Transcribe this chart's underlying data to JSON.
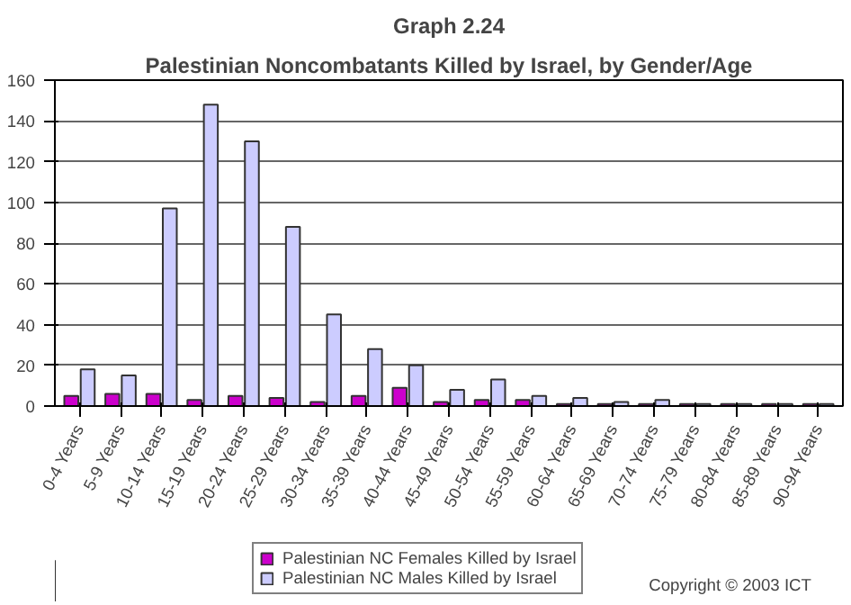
{
  "chart_data": {
    "type": "bar",
    "title": "Graph 2.24",
    "subtitle": "Palestinian Noncombatants Killed by Israel, by Gender/Age",
    "categories": [
      "0-4 Years",
      "5-9 Years",
      "10-14 Years",
      "15-19 Years",
      "20-24 Years",
      "25-29 Years",
      "30-34 Years",
      "35-39 Years",
      "40-44 Years",
      "45-49 Years",
      "50-54 Years",
      "55-59 Years",
      "60-64 Years",
      "65-69 Years",
      "70-74 Years",
      "75-79 Years",
      "80-84 Years",
      "85-89 Years",
      "90-94 Years"
    ],
    "series": [
      {
        "name": "Palestinian NC Females Killed by Israel",
        "color": "#cc00cc",
        "values": [
          5,
          6,
          6,
          3,
          5,
          4,
          2,
          5,
          9,
          2,
          3,
          3,
          1,
          1,
          1,
          1,
          1,
          1,
          1
        ]
      },
      {
        "name": "Palestinian NC Males Killed by Israel",
        "color": "#ccccff",
        "values": [
          18,
          15,
          97,
          148,
          130,
          88,
          45,
          28,
          20,
          8,
          13,
          5,
          4,
          2,
          3,
          1,
          1,
          1,
          1
        ]
      }
    ],
    "ylim": [
      0,
      160
    ],
    "yticks": [
      0,
      20,
      40,
      60,
      80,
      100,
      120,
      140,
      160
    ],
    "grid": "y",
    "legend": "bottom left",
    "annotations": [
      "Copyright © 2003 ICT"
    ]
  }
}
